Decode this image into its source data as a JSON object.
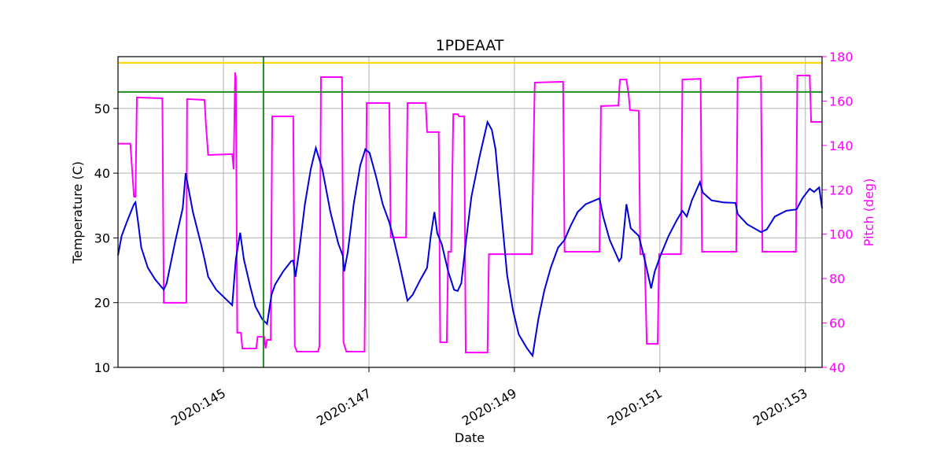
{
  "chart_data": {
    "type": "line",
    "title": "1PDEAAT",
    "xlabel": "Date",
    "ylabel": "Temperature (C)",
    "y2label": "Pitch (deg)",
    "xlim": [
      143.55,
      153.23
    ],
    "ylim": [
      10,
      58
    ],
    "y2lim": [
      40,
      180
    ],
    "xticks": [
      {
        "value": 145,
        "label": "2020:145"
      },
      {
        "value": 147,
        "label": "2020:147"
      },
      {
        "value": 149,
        "label": "2020:149"
      },
      {
        "value": 151,
        "label": "2020:151"
      },
      {
        "value": 153,
        "label": "2020:153"
      }
    ],
    "yticks": [
      10,
      20,
      30,
      40,
      50
    ],
    "y2ticks": [
      40,
      60,
      80,
      100,
      120,
      140,
      160,
      180
    ],
    "grid": true,
    "y2color": "#ff00ff",
    "hlines": [
      {
        "value": 57.05,
        "color": "#ffd700"
      },
      {
        "value": 52.55,
        "color": "#228b22"
      }
    ],
    "vlines": [
      {
        "value": 145.55,
        "color": "#228b22"
      }
    ],
    "series": [
      {
        "color": "#ff00ff",
        "axis": "y2",
        "x": [
          143.55,
          143.72,
          143.77,
          143.79,
          143.81,
          144.16,
          144.18,
          144.49,
          144.5,
          144.74,
          144.76,
          144.79,
          145.12,
          145.14,
          145.16,
          145.17,
          145.19,
          145.24,
          145.26,
          145.45,
          145.47,
          145.56,
          145.58,
          145.6,
          145.65,
          145.67,
          145.96,
          145.98,
          146.01,
          146.3,
          146.32,
          146.34,
          146.63,
          146.65,
          146.69,
          146.94,
          146.97,
          147.28,
          147.3,
          147.51,
          147.53,
          147.78,
          147.8,
          147.96,
          147.98,
          148.07,
          148.09,
          148.13,
          148.16,
          148.22,
          148.24,
          148.31,
          148.33,
          148.63,
          148.65,
          149.24,
          149.26,
          149.28,
          149.67,
          149.69,
          150.17,
          150.19,
          150.43,
          150.45,
          150.54,
          150.57,
          150.59,
          150.71,
          150.73,
          150.79,
          150.82,
          150.97,
          150.99,
          151.29,
          151.31,
          151.56,
          151.58,
          152.05,
          152.07,
          152.39,
          152.41,
          152.87,
          152.89,
          153.06,
          153.08,
          153.23
        ],
        "values": [
          140.8,
          140.8,
          116.9,
          116.9,
          161.6,
          161.2,
          69.1,
          69.1,
          160.9,
          160.5,
          148.8,
          135.7,
          136.1,
          129.3,
          172.9,
          170.5,
          55.6,
          55.6,
          48.5,
          48.5,
          53.8,
          53.8,
          48.5,
          52.4,
          52.4,
          153.1,
          153.1,
          49.6,
          47.1,
          47.1,
          49.6,
          170.8,
          170.8,
          51.3,
          47.1,
          47.1,
          159.1,
          159.1,
          98.5,
          98.5,
          159.1,
          159.1,
          146.0,
          146.0,
          51.3,
          51.3,
          92.1,
          92.1,
          154.1,
          154.1,
          153.1,
          153.1,
          46.7,
          46.7,
          91.0,
          91.0,
          132.9,
          168.3,
          168.7,
          92.1,
          92.1,
          157.7,
          158.0,
          169.7,
          169.7,
          163.0,
          155.9,
          155.6,
          91.0,
          91.0,
          50.6,
          50.6,
          91.0,
          91.0,
          169.7,
          170.0,
          92.1,
          92.1,
          170.5,
          171.2,
          92.1,
          92.1,
          171.5,
          171.5,
          150.6,
          150.6
        ]
      },
      {
        "color": "#0000dd",
        "x": [
          143.55,
          143.6,
          143.68,
          143.77,
          143.79,
          143.83,
          143.87,
          143.96,
          144.06,
          144.18,
          144.22,
          144.33,
          144.44,
          144.48,
          144.58,
          144.69,
          144.74,
          144.79,
          144.9,
          145.01,
          145.12,
          145.17,
          145.23,
          145.28,
          145.37,
          145.44,
          145.53,
          145.6,
          145.66,
          145.71,
          145.82,
          145.93,
          145.96,
          145.99,
          146.04,
          146.12,
          146.2,
          146.27,
          146.36,
          146.47,
          146.58,
          146.64,
          146.66,
          146.71,
          146.79,
          146.88,
          146.95,
          147.01,
          147.1,
          147.19,
          147.28,
          147.33,
          147.42,
          147.53,
          147.6,
          147.71,
          147.77,
          147.8,
          147.85,
          147.9,
          147.94,
          148.0,
          148.09,
          148.17,
          148.22,
          148.27,
          148.33,
          148.41,
          148.52,
          148.63,
          148.69,
          148.74,
          148.83,
          148.9,
          148.98,
          149.06,
          149.17,
          149.25,
          149.33,
          149.41,
          149.5,
          149.6,
          149.69,
          149.77,
          149.87,
          149.98,
          150.17,
          150.22,
          150.31,
          150.44,
          150.47,
          150.54,
          150.6,
          150.71,
          150.79,
          150.88,
          150.93,
          151.01,
          151.12,
          151.23,
          151.31,
          151.37,
          151.44,
          151.55,
          151.59,
          151.71,
          151.87,
          152.04,
          152.07,
          152.2,
          152.39,
          152.47,
          152.58,
          152.74,
          152.88,
          152.96,
          153.06,
          153.12,
          153.19,
          153.23
        ],
        "values": [
          27.3,
          30.3,
          32.7,
          35.2,
          35.5,
          32.1,
          28.5,
          25.4,
          23.6,
          22.0,
          23.0,
          29.1,
          34.6,
          40.0,
          34.0,
          29.1,
          26.7,
          24.0,
          22.0,
          20.8,
          19.6,
          26.7,
          30.8,
          26.7,
          22.4,
          19.4,
          17.5,
          16.7,
          21.2,
          22.8,
          24.8,
          26.4,
          26.5,
          24.0,
          27.9,
          35.2,
          40.6,
          43.9,
          40.6,
          34.0,
          29.1,
          27.3,
          24.8,
          27.9,
          35.2,
          41.2,
          43.7,
          43.1,
          39.4,
          35.2,
          32.4,
          30.3,
          26.0,
          20.3,
          21.2,
          23.6,
          24.8,
          25.4,
          30.3,
          34.0,
          30.7,
          29.1,
          24.8,
          22.0,
          21.8,
          23.0,
          29.1,
          36.4,
          42.5,
          47.9,
          46.7,
          43.7,
          32.7,
          24.2,
          18.8,
          15.1,
          13.0,
          11.8,
          17.5,
          21.8,
          25.4,
          28.5,
          29.7,
          31.8,
          34.0,
          35.2,
          36.1,
          33.3,
          29.7,
          26.4,
          26.9,
          35.2,
          31.5,
          30.3,
          26.7,
          22.2,
          24.8,
          27.3,
          30.3,
          32.7,
          34.2,
          33.3,
          35.8,
          38.6,
          37.0,
          35.8,
          35.5,
          35.4,
          33.7,
          32.1,
          30.9,
          31.3,
          33.3,
          34.2,
          34.4,
          36.1,
          37.6,
          37.1,
          37.8,
          34.6
        ]
      }
    ]
  }
}
